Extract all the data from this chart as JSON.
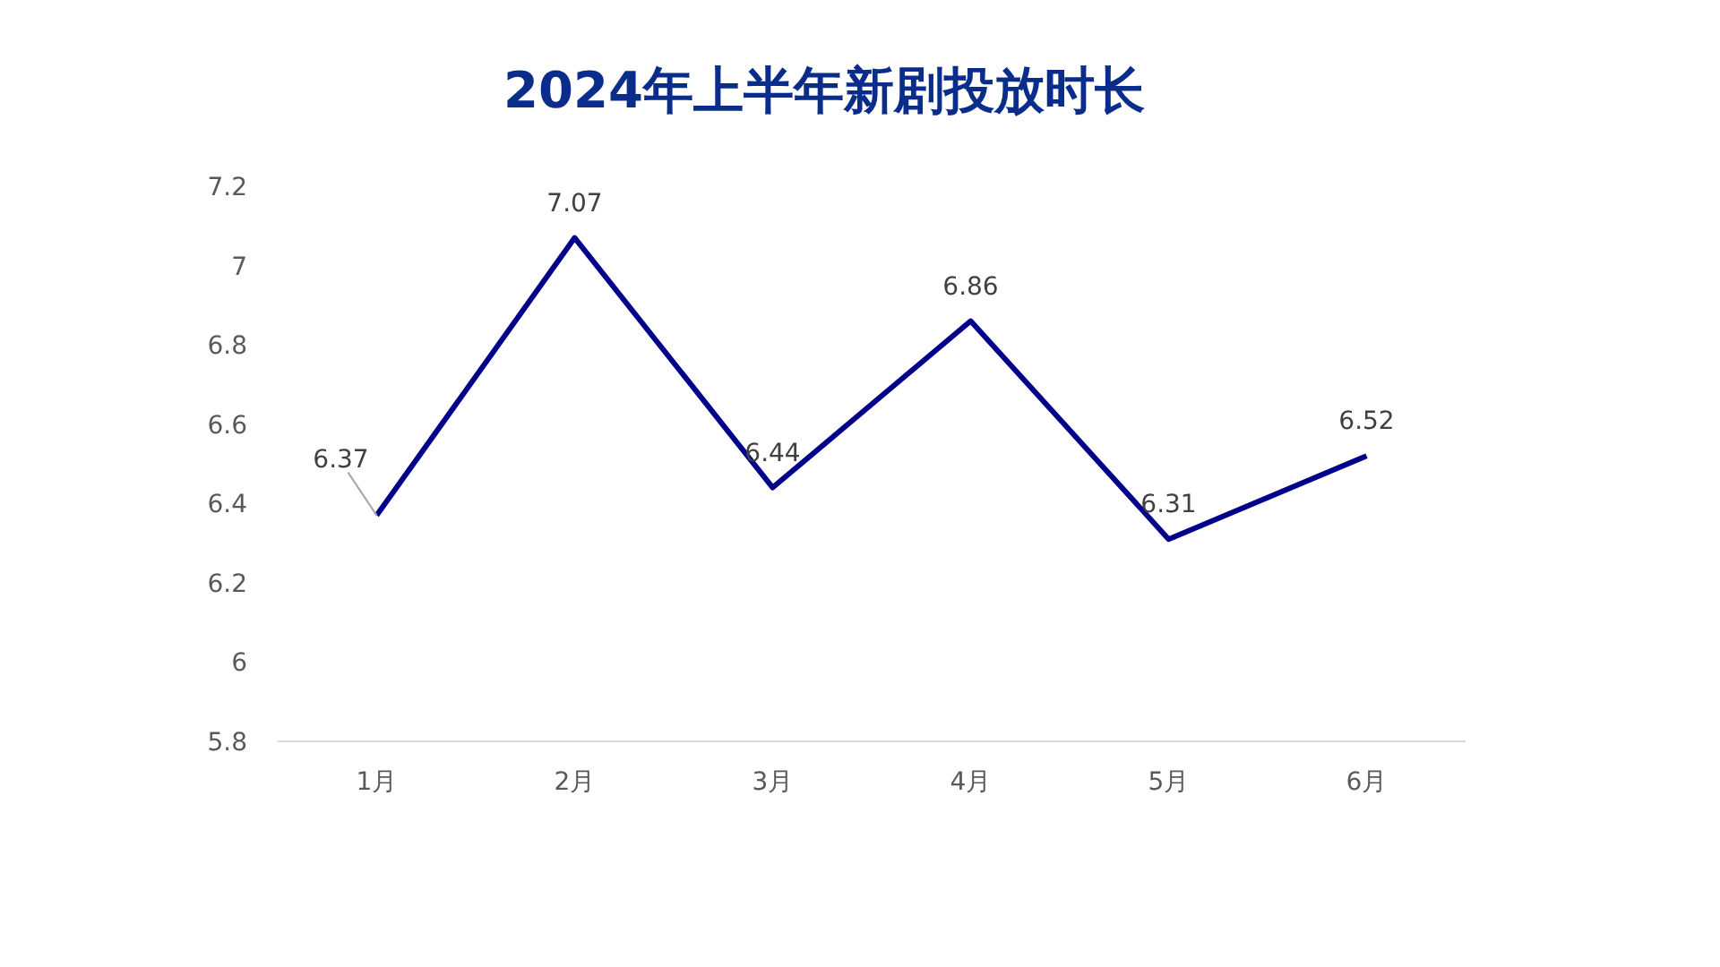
{
  "chart_data": {
    "type": "line",
    "title": "2024年上半年新剧投放时长",
    "categories": [
      "1月",
      "2月",
      "3月",
      "4月",
      "5月",
      "6月"
    ],
    "series": [
      {
        "color": "#00008b",
        "values": [
          6.37,
          7.07,
          6.44,
          6.86,
          6.31,
          6.52
        ]
      }
    ],
    "ylim": [
      5.8,
      7.2
    ],
    "yticks": [
      5.8,
      6,
      6.2,
      6.4,
      6.6,
      6.8,
      7,
      7.2
    ],
    "data_labels": true,
    "grid": false,
    "marker": "none",
    "line_style": "solid"
  }
}
